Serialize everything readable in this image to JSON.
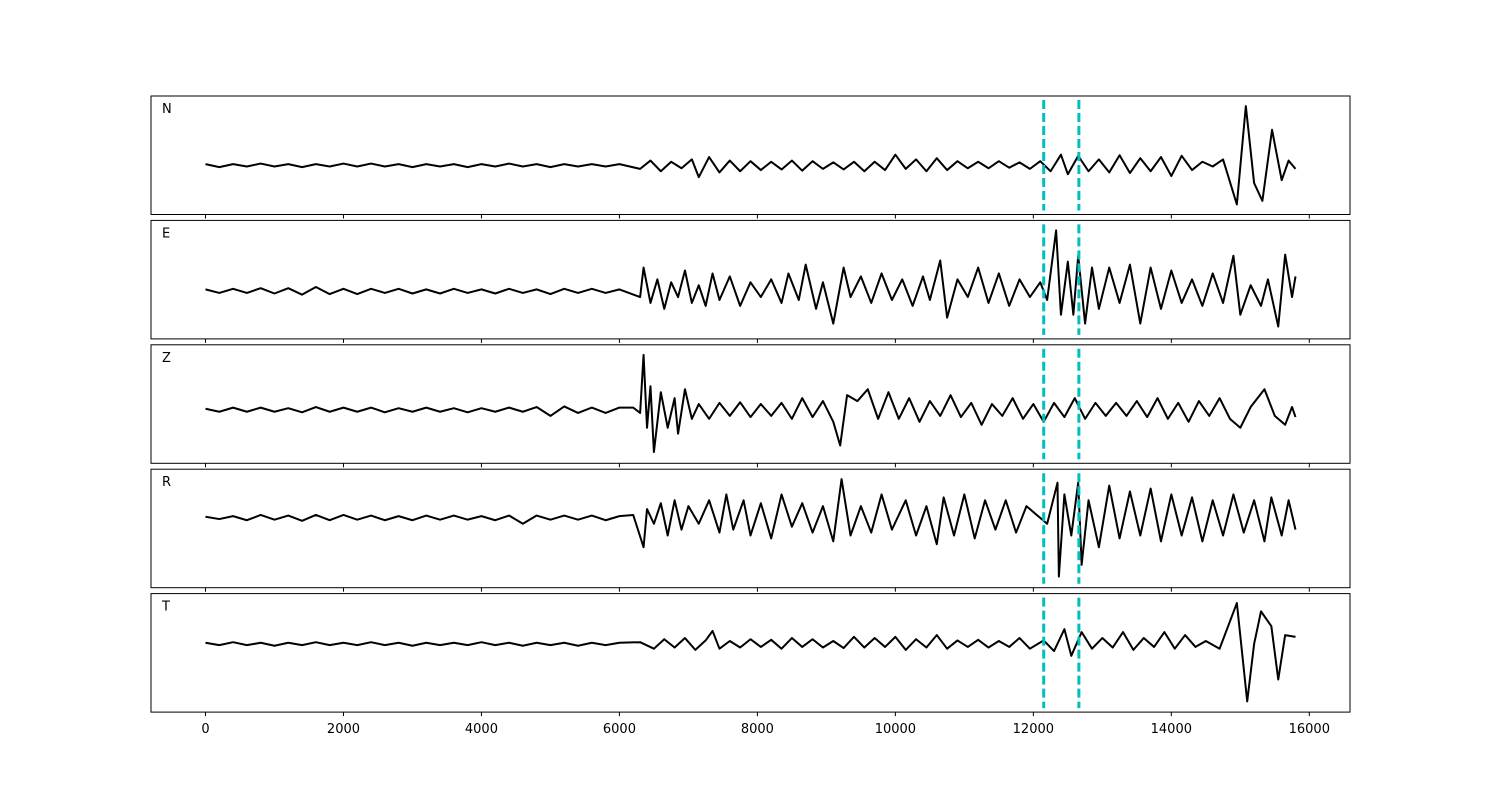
{
  "chart_data": [
    {
      "type": "line",
      "label": "N",
      "xlim": [
        -790,
        16590
      ],
      "ylim": [
        -0.83,
        1.17
      ],
      "xticks": [
        0,
        2000,
        4000,
        6000,
        8000,
        10000,
        12000,
        14000,
        16000
      ],
      "vlines": {
        "x": [
          12150,
          12660
        ],
        "color": "#00bfbf"
      },
      "x": [
        0,
        200,
        400,
        600,
        800,
        1000,
        1200,
        1400,
        1600,
        1800,
        2000,
        2200,
        2400,
        2600,
        2800,
        3000,
        3200,
        3400,
        3600,
        3800,
        4000,
        4200,
        4400,
        4600,
        4800,
        5000,
        5200,
        5400,
        5600,
        5800,
        6000,
        6300,
        6450,
        6600,
        6750,
        6900,
        7050,
        7150,
        7300,
        7450,
        7600,
        7750,
        7900,
        8050,
        8200,
        8350,
        8500,
        8650,
        8800,
        8950,
        9100,
        9250,
        9400,
        9550,
        9700,
        9850,
        10000,
        10150,
        10300,
        10450,
        10600,
        10750,
        10900,
        11050,
        11200,
        11350,
        11500,
        11650,
        11800,
        11950,
        12100,
        12250,
        12400,
        12500,
        12650,
        12800,
        12950,
        13100,
        13250,
        13400,
        13550,
        13700,
        13850,
        14000,
        14150,
        14300,
        14450,
        14600,
        14750,
        14950,
        15080,
        15200,
        15320,
        15460,
        15600,
        15700,
        15800
      ],
      "series": [
        {
          "color": "#000000",
          "values": [
            0.02,
            -0.03,
            0.02,
            -0.02,
            0.03,
            -0.02,
            0.02,
            -0.03,
            0.02,
            -0.02,
            0.03,
            -0.02,
            0.03,
            -0.02,
            0.02,
            -0.03,
            0.02,
            -0.02,
            0.02,
            -0.03,
            0.02,
            -0.02,
            0.03,
            -0.02,
            0.02,
            -0.03,
            0.02,
            -0.02,
            0.02,
            -0.02,
            0.02,
            -0.06,
            0.08,
            -0.1,
            0.06,
            -0.05,
            0.1,
            -0.2,
            0.14,
            -0.12,
            0.08,
            -0.1,
            0.07,
            -0.08,
            0.06,
            -0.07,
            0.08,
            -0.09,
            0.07,
            -0.06,
            0.05,
            -0.07,
            0.06,
            -0.1,
            0.06,
            -0.08,
            0.18,
            -0.06,
            0.1,
            -0.1,
            0.12,
            -0.08,
            0.07,
            -0.05,
            0.06,
            -0.05,
            0.07,
            -0.04,
            0.05,
            -0.06,
            0.07,
            -0.1,
            0.18,
            -0.15,
            0.16,
            -0.1,
            0.1,
            -0.12,
            0.17,
            -0.13,
            0.12,
            -0.1,
            0.14,
            -0.18,
            0.16,
            -0.08,
            0.06,
            -0.02,
            0.1,
            -0.66,
            1.0,
            -0.3,
            -0.6,
            0.6,
            -0.25,
            0.08,
            -0.06
          ]
        }
      ]
    },
    {
      "type": "line",
      "label": "E",
      "xlim": [
        -790,
        16590
      ],
      "ylim": [
        -0.81,
        1.2
      ],
      "xticks": [
        0,
        2000,
        4000,
        6000,
        8000,
        10000,
        12000,
        14000,
        16000
      ],
      "vlines": {
        "x": [
          12150,
          12660
        ],
        "color": "#00bfbf"
      },
      "x": [
        0,
        200,
        400,
        600,
        800,
        1000,
        1200,
        1400,
        1600,
        1800,
        2000,
        2200,
        2400,
        2600,
        2800,
        3000,
        3200,
        3400,
        3600,
        3800,
        4000,
        4200,
        4400,
        4600,
        4800,
        5000,
        5200,
        5400,
        5600,
        5800,
        6000,
        6300,
        6350,
        6450,
        6550,
        6650,
        6750,
        6850,
        6950,
        7050,
        7150,
        7250,
        7350,
        7450,
        7600,
        7750,
        7900,
        8050,
        8200,
        8350,
        8450,
        8600,
        8700,
        8850,
        8950,
        9100,
        9250,
        9350,
        9500,
        9650,
        9800,
        9950,
        10100,
        10250,
        10400,
        10500,
        10650,
        10750,
        10900,
        11050,
        11200,
        11350,
        11500,
        11650,
        11800,
        11950,
        12100,
        12200,
        12330,
        12400,
        12500,
        12580,
        12650,
        12750,
        12850,
        12950,
        13100,
        13250,
        13400,
        13550,
        13700,
        13850,
        14000,
        14150,
        14300,
        14450,
        14600,
        14750,
        14900,
        15000,
        15150,
        15300,
        15400,
        15550,
        15650,
        15750,
        15800
      ],
      "series": [
        {
          "color": "#000000",
          "values": [
            0.03,
            -0.03,
            0.04,
            -0.03,
            0.05,
            -0.04,
            0.05,
            -0.06,
            0.07,
            -0.05,
            0.04,
            -0.05,
            0.04,
            -0.03,
            0.04,
            -0.04,
            0.03,
            -0.04,
            0.04,
            -0.03,
            0.03,
            -0.04,
            0.04,
            -0.03,
            0.03,
            -0.05,
            0.04,
            -0.03,
            0.04,
            -0.03,
            0.03,
            -0.1,
            0.4,
            -0.2,
            0.2,
            -0.3,
            0.15,
            -0.1,
            0.35,
            -0.2,
            0.1,
            -0.25,
            0.3,
            -0.15,
            0.25,
            -0.25,
            0.15,
            -0.1,
            0.2,
            -0.2,
            0.3,
            -0.15,
            0.45,
            -0.3,
            0.15,
            -0.55,
            0.4,
            -0.1,
            0.25,
            -0.2,
            0.3,
            -0.15,
            0.2,
            -0.25,
            0.25,
            -0.15,
            0.52,
            -0.45,
            0.2,
            -0.1,
            0.4,
            -0.2,
            0.3,
            -0.25,
            0.2,
            -0.1,
            0.15,
            -0.15,
            1.03,
            -0.4,
            0.5,
            -0.4,
            0.6,
            -0.55,
            0.4,
            -0.3,
            0.4,
            -0.2,
            0.45,
            -0.55,
            0.4,
            -0.3,
            0.35,
            -0.2,
            0.2,
            -0.25,
            0.3,
            -0.2,
            0.6,
            -0.4,
            0.1,
            -0.25,
            0.2,
            -0.6,
            0.62,
            -0.1,
            0.25
          ]
        }
      ]
    },
    {
      "type": "line",
      "label": "Z",
      "xlim": [
        -790,
        16590
      ],
      "ylim": [
        -0.9,
        1.1
      ],
      "xticks": [
        0,
        2000,
        4000,
        6000,
        8000,
        10000,
        12000,
        14000,
        16000
      ],
      "vlines": {
        "x": [
          12150,
          12660
        ],
        "color": "#00bfbf"
      },
      "x": [
        0,
        200,
        400,
        600,
        800,
        1000,
        1200,
        1400,
        1600,
        1800,
        2000,
        2200,
        2400,
        2600,
        2800,
        3000,
        3200,
        3400,
        3600,
        3800,
        4000,
        4200,
        4400,
        4600,
        4800,
        5000,
        5200,
        5400,
        5600,
        5800,
        6000,
        6200,
        6300,
        6350,
        6400,
        6450,
        6500,
        6600,
        6700,
        6800,
        6850,
        6950,
        7050,
        7150,
        7300,
        7450,
        7600,
        7750,
        7900,
        8050,
        8200,
        8350,
        8500,
        8650,
        8800,
        8950,
        9100,
        9200,
        9300,
        9450,
        9600,
        9750,
        9900,
        10050,
        10200,
        10350,
        10500,
        10650,
        10800,
        10950,
        11100,
        11250,
        11400,
        11550,
        11700,
        11850,
        12000,
        12150,
        12300,
        12450,
        12600,
        12750,
        12900,
        13050,
        13200,
        13350,
        13500,
        13650,
        13800,
        13950,
        14100,
        14250,
        14400,
        14550,
        14700,
        14850,
        15000,
        15150,
        15350,
        15500,
        15650,
        15750,
        15800
      ],
      "series": [
        {
          "color": "#000000",
          "values": [
            0.02,
            -0.03,
            0.04,
            -0.03,
            0.04,
            -0.03,
            0.03,
            -0.04,
            0.05,
            -0.03,
            0.04,
            -0.03,
            0.04,
            -0.04,
            0.03,
            -0.03,
            0.04,
            -0.03,
            0.03,
            -0.04,
            0.03,
            -0.03,
            0.04,
            -0.03,
            0.05,
            -0.1,
            0.06,
            -0.05,
            0.04,
            -0.05,
            0.04,
            0.04,
            -0.05,
            0.93,
            -0.3,
            0.4,
            -0.71,
            0.3,
            -0.3,
            0.2,
            -0.4,
            0.35,
            -0.15,
            0.1,
            -0.15,
            0.12,
            -0.1,
            0.13,
            -0.12,
            0.1,
            -0.1,
            0.12,
            -0.15,
            0.2,
            -0.12,
            0.15,
            -0.2,
            -0.6,
            0.25,
            0.15,
            0.35,
            -0.15,
            0.3,
            -0.15,
            0.2,
            -0.2,
            0.15,
            -0.1,
            0.25,
            -0.12,
            0.12,
            -0.25,
            0.1,
            -0.1,
            0.2,
            -0.15,
            0.1,
            -0.2,
            0.12,
            -0.12,
            0.2,
            -0.15,
            0.12,
            -0.1,
            0.12,
            -0.1,
            0.15,
            -0.12,
            0.2,
            -0.15,
            0.12,
            -0.2,
            0.15,
            -0.1,
            0.2,
            -0.15,
            -0.3,
            0.05,
            0.35,
            -0.1,
            -0.25,
            0.05,
            -0.12
          ]
        }
      ]
    },
    {
      "type": "line",
      "label": "R",
      "xlim": [
        -790,
        16590
      ],
      "ylim": [
        -1.19,
        0.83
      ],
      "xticks": [
        0,
        2000,
        4000,
        6000,
        8000,
        10000,
        12000,
        14000,
        16000
      ],
      "vlines": {
        "x": [
          12150,
          12660
        ],
        "color": "#00bfbf"
      },
      "x": [
        0,
        200,
        400,
        600,
        800,
        1000,
        1200,
        1400,
        1600,
        1800,
        2000,
        2200,
        2400,
        2600,
        2800,
        3000,
        3200,
        3400,
        3600,
        3800,
        4000,
        4200,
        4400,
        4600,
        4800,
        5000,
        5200,
        5400,
        5600,
        5800,
        6000,
        6200,
        6350,
        6400,
        6500,
        6600,
        6700,
        6800,
        6900,
        7000,
        7150,
        7300,
        7450,
        7550,
        7650,
        7800,
        7900,
        8050,
        8200,
        8350,
        8500,
        8650,
        8800,
        8950,
        9100,
        9220,
        9350,
        9500,
        9650,
        9800,
        9950,
        10150,
        10300,
        10450,
        10600,
        10700,
        10850,
        11000,
        11150,
        11300,
        11450,
        11600,
        11750,
        11900,
        12050,
        12200,
        12350,
        12370,
        12450,
        12550,
        12650,
        12700,
        12800,
        12950,
        13100,
        13250,
        13400,
        13550,
        13700,
        13850,
        14000,
        14150,
        14300,
        14450,
        14600,
        14750,
        14900,
        15050,
        15200,
        15350,
        15450,
        15600,
        15700,
        15800
      ],
      "series": [
        {
          "color": "#000000",
          "values": [
            0.02,
            -0.02,
            0.03,
            -0.04,
            0.05,
            -0.03,
            0.04,
            -0.05,
            0.05,
            -0.04,
            0.05,
            -0.03,
            0.04,
            -0.04,
            0.03,
            -0.04,
            0.04,
            -0.03,
            0.04,
            -0.03,
            0.03,
            -0.04,
            0.04,
            -0.1,
            0.04,
            -0.03,
            0.04,
            -0.03,
            0.04,
            -0.04,
            0.03,
            0.05,
            -0.5,
            0.15,
            -0.1,
            0.25,
            -0.3,
            0.3,
            -0.2,
            0.2,
            -0.1,
            0.3,
            -0.25,
            0.4,
            -0.2,
            0.3,
            -0.3,
            0.25,
            -0.35,
            0.4,
            -0.15,
            0.25,
            -0.25,
            0.2,
            -0.4,
            0.66,
            -0.3,
            0.2,
            -0.25,
            0.4,
            -0.2,
            0.3,
            -0.3,
            0.2,
            -0.45,
            0.35,
            -0.3,
            0.4,
            -0.35,
            0.3,
            -0.2,
            0.3,
            -0.25,
            0.2,
            0.05,
            -0.1,
            0.6,
            -1.0,
            0.4,
            -0.3,
            0.6,
            -0.8,
            0.3,
            -0.5,
            0.55,
            -0.35,
            0.45,
            -0.3,
            0.5,
            -0.4,
            0.4,
            -0.3,
            0.35,
            -0.4,
            0.3,
            -0.3,
            0.4,
            -0.25,
            0.3,
            -0.4,
            0.35,
            -0.3,
            0.3,
            -0.2
          ]
        }
      ]
    },
    {
      "type": "line",
      "label": "T",
      "xlim": [
        -790,
        16590
      ],
      "ylim": [
        -1.15,
        0.85
      ],
      "xticks": [
        0,
        2000,
        4000,
        6000,
        8000,
        10000,
        12000,
        14000,
        16000
      ],
      "vlines": {
        "x": [
          12150,
          12660
        ],
        "color": "#00bfbf"
      },
      "x": [
        0,
        200,
        400,
        600,
        800,
        1000,
        1200,
        1400,
        1600,
        1800,
        2000,
        2200,
        2400,
        2600,
        2800,
        3000,
        3200,
        3400,
        3600,
        3800,
        4000,
        4200,
        4400,
        4600,
        4800,
        5000,
        5200,
        5400,
        5600,
        5800,
        6000,
        6300,
        6500,
        6650,
        6800,
        6950,
        7100,
        7250,
        7350,
        7450,
        7600,
        7750,
        7900,
        8050,
        8200,
        8350,
        8500,
        8650,
        8800,
        8950,
        9100,
        9250,
        9400,
        9550,
        9700,
        9850,
        10000,
        10150,
        10300,
        10450,
        10600,
        10750,
        10900,
        11050,
        11200,
        11350,
        11500,
        11650,
        11800,
        11950,
        12150,
        12300,
        12450,
        12550,
        12700,
        12850,
        13000,
        13150,
        13300,
        13450,
        13600,
        13750,
        13900,
        14050,
        14200,
        14350,
        14500,
        14700,
        14950,
        15100,
        15200,
        15300,
        15450,
        15550,
        15650,
        15800
      ],
      "series": [
        {
          "color": "#000000",
          "values": [
            0.02,
            -0.02,
            0.03,
            -0.02,
            0.02,
            -0.03,
            0.02,
            -0.02,
            0.03,
            -0.02,
            0.02,
            -0.02,
            0.03,
            -0.02,
            0.02,
            -0.03,
            0.02,
            -0.02,
            0.02,
            -0.02,
            0.03,
            -0.02,
            0.02,
            -0.03,
            0.02,
            -0.02,
            0.02,
            -0.03,
            0.02,
            -0.02,
            0.02,
            0.03,
            -0.08,
            0.08,
            -0.06,
            0.1,
            -0.1,
            0.06,
            0.22,
            -0.08,
            0.05,
            -0.06,
            0.08,
            -0.05,
            0.07,
            -0.08,
            0.1,
            -0.05,
            0.08,
            -0.06,
            0.05,
            -0.07,
            0.12,
            -0.06,
            0.1,
            -0.05,
            0.12,
            -0.1,
            0.08,
            -0.06,
            0.15,
            -0.08,
            0.06,
            -0.05,
            0.07,
            -0.06,
            0.05,
            -0.05,
            0.1,
            -0.08,
            0.06,
            -0.12,
            0.25,
            -0.2,
            0.2,
            -0.08,
            0.1,
            -0.06,
            0.2,
            -0.1,
            0.1,
            -0.05,
            0.2,
            -0.08,
            0.15,
            -0.05,
            0.05,
            -0.08,
            0.69,
            -0.97,
            0.0,
            0.55,
            0.3,
            -0.6,
            0.15,
            0.12
          ]
        }
      ]
    }
  ]
}
